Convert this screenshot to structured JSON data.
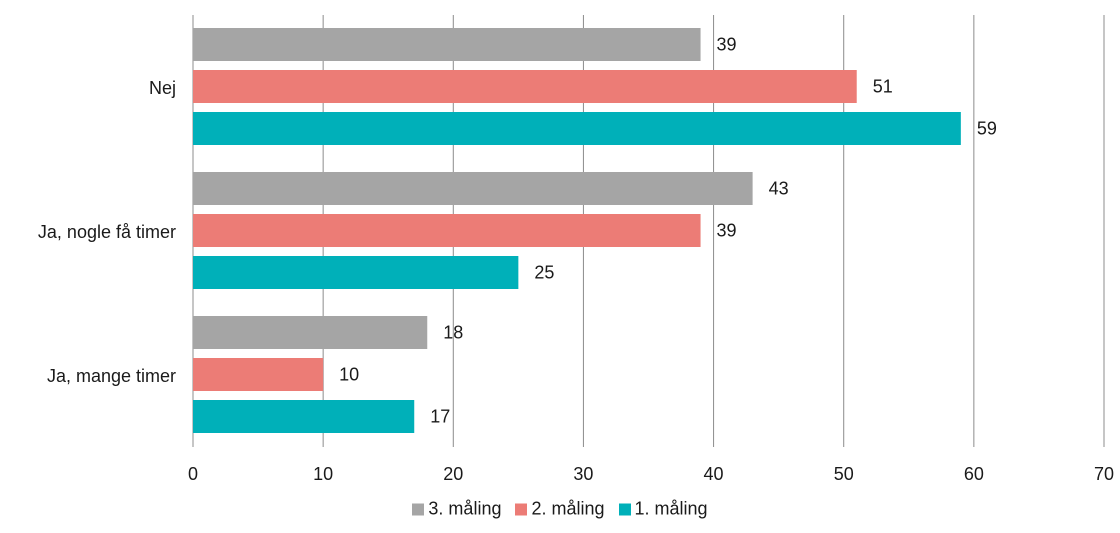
{
  "chart_data": {
    "type": "bar",
    "orientation": "horizontal",
    "categories": [
      "Nej",
      "Ja, nogle få timer",
      "Ja, mange timer"
    ],
    "series": [
      {
        "name": "3. måling",
        "color": "#a5a5a5",
        "values": [
          39,
          43,
          18
        ]
      },
      {
        "name": "2. måling",
        "color": "#ec7c76",
        "values": [
          51,
          39,
          10
        ]
      },
      {
        "name": "1. måling",
        "color": "#00b0b9",
        "values": [
          59,
          25,
          17
        ]
      }
    ],
    "xlim": [
      0,
      70
    ],
    "xticks": [
      0,
      10,
      20,
      30,
      40,
      50,
      60,
      70
    ],
    "grid": true,
    "legend_position": "bottom",
    "data_labels": true
  }
}
